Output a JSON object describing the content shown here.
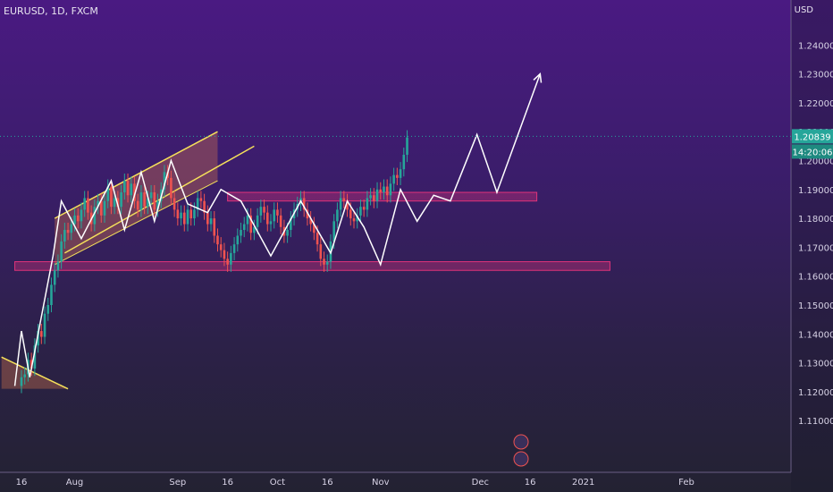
{
  "symbol": "EURUSD, 1D, FXCM",
  "currency": "USD",
  "colors": {
    "up": "#26a69a",
    "down": "#ef5350",
    "zone": "#e0337a",
    "channel": "#f5e05a",
    "path": "#ffffff"
  },
  "chart_data": {
    "type": "candlestick",
    "yaxis": {
      "ylim": [
        1.1,
        1.25
      ],
      "ticks": [
        "1.24000",
        "1.23000",
        "1.22000",
        "1.21000",
        "1.20000",
        "1.19000",
        "1.18000",
        "1.17000",
        "1.16000",
        "1.15000",
        "1.14000",
        "1.13000",
        "1.12000",
        "1.11000"
      ]
    },
    "xaxis": {
      "ticks": [
        {
          "label": "16",
          "day": 0
        },
        {
          "label": "Aug",
          "day": 16
        },
        {
          "label": "Sep",
          "day": 47
        },
        {
          "label": "16",
          "day": 62
        },
        {
          "label": "Oct",
          "day": 77
        },
        {
          "label": "16",
          "day": 92
        },
        {
          "label": "Nov",
          "day": 108
        },
        {
          "label": "Dec",
          "day": 138
        },
        {
          "label": "16",
          "day": 153
        },
        {
          "label": "2021",
          "day": 169
        },
        {
          "label": "Feb",
          "day": 200
        }
      ]
    },
    "last_price": "1.20839",
    "countdown": "14:20:06",
    "closes": [
      1.125,
      1.126,
      1.131,
      1.128,
      1.136,
      1.141,
      1.139,
      1.147,
      1.15,
      1.157,
      1.162,
      1.165,
      1.172,
      1.176,
      1.175,
      1.178,
      1.181,
      1.179,
      1.183,
      1.187,
      1.182,
      1.178,
      1.184,
      1.186,
      1.181,
      1.186,
      1.191,
      1.184,
      1.187,
      1.184,
      1.189,
      1.193,
      1.188,
      1.192,
      1.186,
      1.183,
      1.189,
      1.184,
      1.187,
      1.189,
      1.183,
      1.186,
      1.19,
      1.196,
      1.194,
      1.187,
      1.183,
      1.18,
      1.182,
      1.178,
      1.183,
      1.18,
      1.183,
      1.187,
      1.186,
      1.182,
      1.178,
      1.18,
      1.174,
      1.171,
      1.169,
      1.166,
      1.164,
      1.168,
      1.171,
      1.174,
      1.176,
      1.178,
      1.181,
      1.175,
      1.177,
      1.181,
      1.184,
      1.182,
      1.178,
      1.179,
      1.183,
      1.181,
      1.177,
      1.174,
      1.176,
      1.18,
      1.183,
      1.185,
      1.187,
      1.183,
      1.18,
      1.178,
      1.175,
      1.171,
      1.166,
      1.164,
      1.165,
      1.172,
      1.179,
      1.183,
      1.187,
      1.186,
      1.183,
      1.18,
      1.179,
      1.181,
      1.184,
      1.183,
      1.187,
      1.188,
      1.186,
      1.19,
      1.189,
      1.191,
      1.188,
      1.192,
      1.195,
      1.194,
      1.197,
      1.202,
      1.208
    ],
    "price_path": [
      [
        1.122,
        -2
      ],
      [
        1.141,
        0
      ],
      [
        1.125,
        2.5
      ],
      [
        1.167,
        9.5
      ],
      [
        1.186,
        12
      ],
      [
        1.173,
        18
      ],
      [
        1.193,
        27
      ],
      [
        1.176,
        31
      ],
      [
        1.196,
        36
      ],
      [
        1.179,
        40
      ],
      [
        1.2,
        45
      ],
      [
        1.185,
        50
      ],
      [
        1.182,
        56
      ],
      [
        1.19,
        60
      ],
      [
        1.186,
        66
      ],
      [
        1.167,
        75
      ],
      [
        1.186,
        84
      ],
      [
        1.168,
        93
      ],
      [
        1.186,
        98
      ],
      [
        1.177,
        103
      ],
      [
        1.164,
        108
      ],
      [
        1.19,
        114
      ],
      [
        1.179,
        119
      ],
      [
        1.188,
        124
      ],
      [
        1.186,
        129
      ],
      [
        1.209,
        137
      ],
      [
        1.189,
        143
      ],
      [
        1.23,
        156
      ]
    ],
    "price_path_x": [
      -2,
      0,
      2.5,
      9.5,
      12,
      18,
      27,
      31,
      36,
      40,
      45,
      50,
      56,
      60,
      66,
      75,
      84,
      93,
      98,
      103,
      108,
      114,
      119,
      124,
      129,
      137,
      143,
      156
    ],
    "zones": [
      {
        "from": 1.162,
        "to": 1.165,
        "x0": -2,
        "x1": 177
      },
      {
        "from": 1.186,
        "to": 1.189,
        "x0": 62,
        "x1": 155
      }
    ],
    "channel": {
      "upper": [
        [
          10,
          1.18
        ],
        [
          59,
          1.21
        ]
      ],
      "lower": [
        [
          10,
          1.164
        ],
        [
          59,
          1.193
        ]
      ],
      "extra": [
        [
          13,
          1.168
        ],
        [
          70,
          1.205
        ]
      ]
    }
  }
}
